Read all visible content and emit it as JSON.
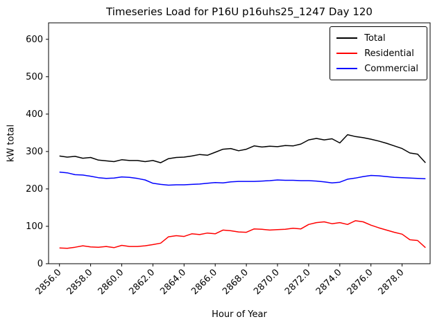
{
  "chart_data": {
    "type": "line",
    "title": "Timeseries Load for P16U p16uhs25_1247  Day 120",
    "xlabel": "Hour of Year",
    "ylabel": "kW total",
    "xlim": [
      2855.3,
      2879.8
    ],
    "ylim": [
      0,
      644
    ],
    "grid": false,
    "legend_position": "upper right",
    "x_ticks": [
      2856,
      2858,
      2860,
      2862,
      2864,
      2866,
      2868,
      2870,
      2872,
      2874,
      2876,
      2878
    ],
    "x_tick_labels": [
      "2856.0",
      "2858.0",
      "2860.0",
      "2862.0",
      "2864.0",
      "2866.0",
      "2868.0",
      "2870.0",
      "2872.0",
      "2874.0",
      "2876.0",
      "2878.0"
    ],
    "y_ticks": [
      0,
      100,
      200,
      300,
      400,
      500,
      600
    ],
    "y_tick_labels": [
      "0",
      "100",
      "200",
      "300",
      "400",
      "500",
      "600"
    ],
    "x": [
      2856.0,
      2856.5,
      2857.0,
      2857.5,
      2858.0,
      2858.5,
      2859.0,
      2859.5,
      2860.0,
      2860.5,
      2861.0,
      2861.5,
      2862.0,
      2862.5,
      2863.0,
      2863.5,
      2864.0,
      2864.5,
      2865.0,
      2865.5,
      2866.0,
      2866.5,
      2867.0,
      2867.5,
      2868.0,
      2868.5,
      2869.0,
      2869.5,
      2870.0,
      2870.5,
      2871.0,
      2871.5,
      2872.0,
      2872.5,
      2873.0,
      2873.5,
      2874.0,
      2874.5,
      2875.0,
      2875.5,
      2876.0,
      2876.5,
      2877.0,
      2877.5,
      2878.0,
      2878.5,
      2879.0,
      2879.5
    ],
    "series": [
      {
        "name": "Total",
        "color": "#000000",
        "values": [
          288,
          285,
          287,
          282,
          284,
          277,
          275,
          273,
          278,
          276,
          276,
          273,
          276,
          270,
          281,
          284,
          285,
          288,
          292,
          290,
          298,
          306,
          308,
          302,
          306,
          315,
          312,
          314,
          313,
          316,
          315,
          320,
          331,
          335,
          331,
          334,
          323,
          345,
          340,
          337,
          333,
          328,
          322,
          315,
          308,
          296,
          293,
          270
        ]
      },
      {
        "name": "Residential",
        "color": "#ff0000",
        "values": [
          42,
          41,
          44,
          48,
          45,
          44,
          46,
          43,
          49,
          46,
          46,
          48,
          51,
          55,
          72,
          75,
          73,
          80,
          78,
          82,
          80,
          90,
          88,
          85,
          84,
          93,
          92,
          90,
          91,
          92,
          95,
          93,
          105,
          110,
          112,
          107,
          110,
          105,
          115,
          112,
          103,
          96,
          90,
          84,
          79,
          64,
          62,
          43
        ]
      },
      {
        "name": "Commercial",
        "color": "#0000ff",
        "values": [
          245,
          243,
          238,
          237,
          234,
          230,
          228,
          229,
          232,
          231,
          228,
          224,
          215,
          212,
          210,
          211,
          211,
          212,
          213,
          215,
          217,
          216,
          219,
          220,
          220,
          220,
          221,
          222,
          224,
          223,
          223,
          222,
          222,
          221,
          219,
          216,
          218,
          226,
          229,
          233,
          236,
          235,
          233,
          231,
          230,
          229,
          228,
          227
        ]
      }
    ]
  }
}
